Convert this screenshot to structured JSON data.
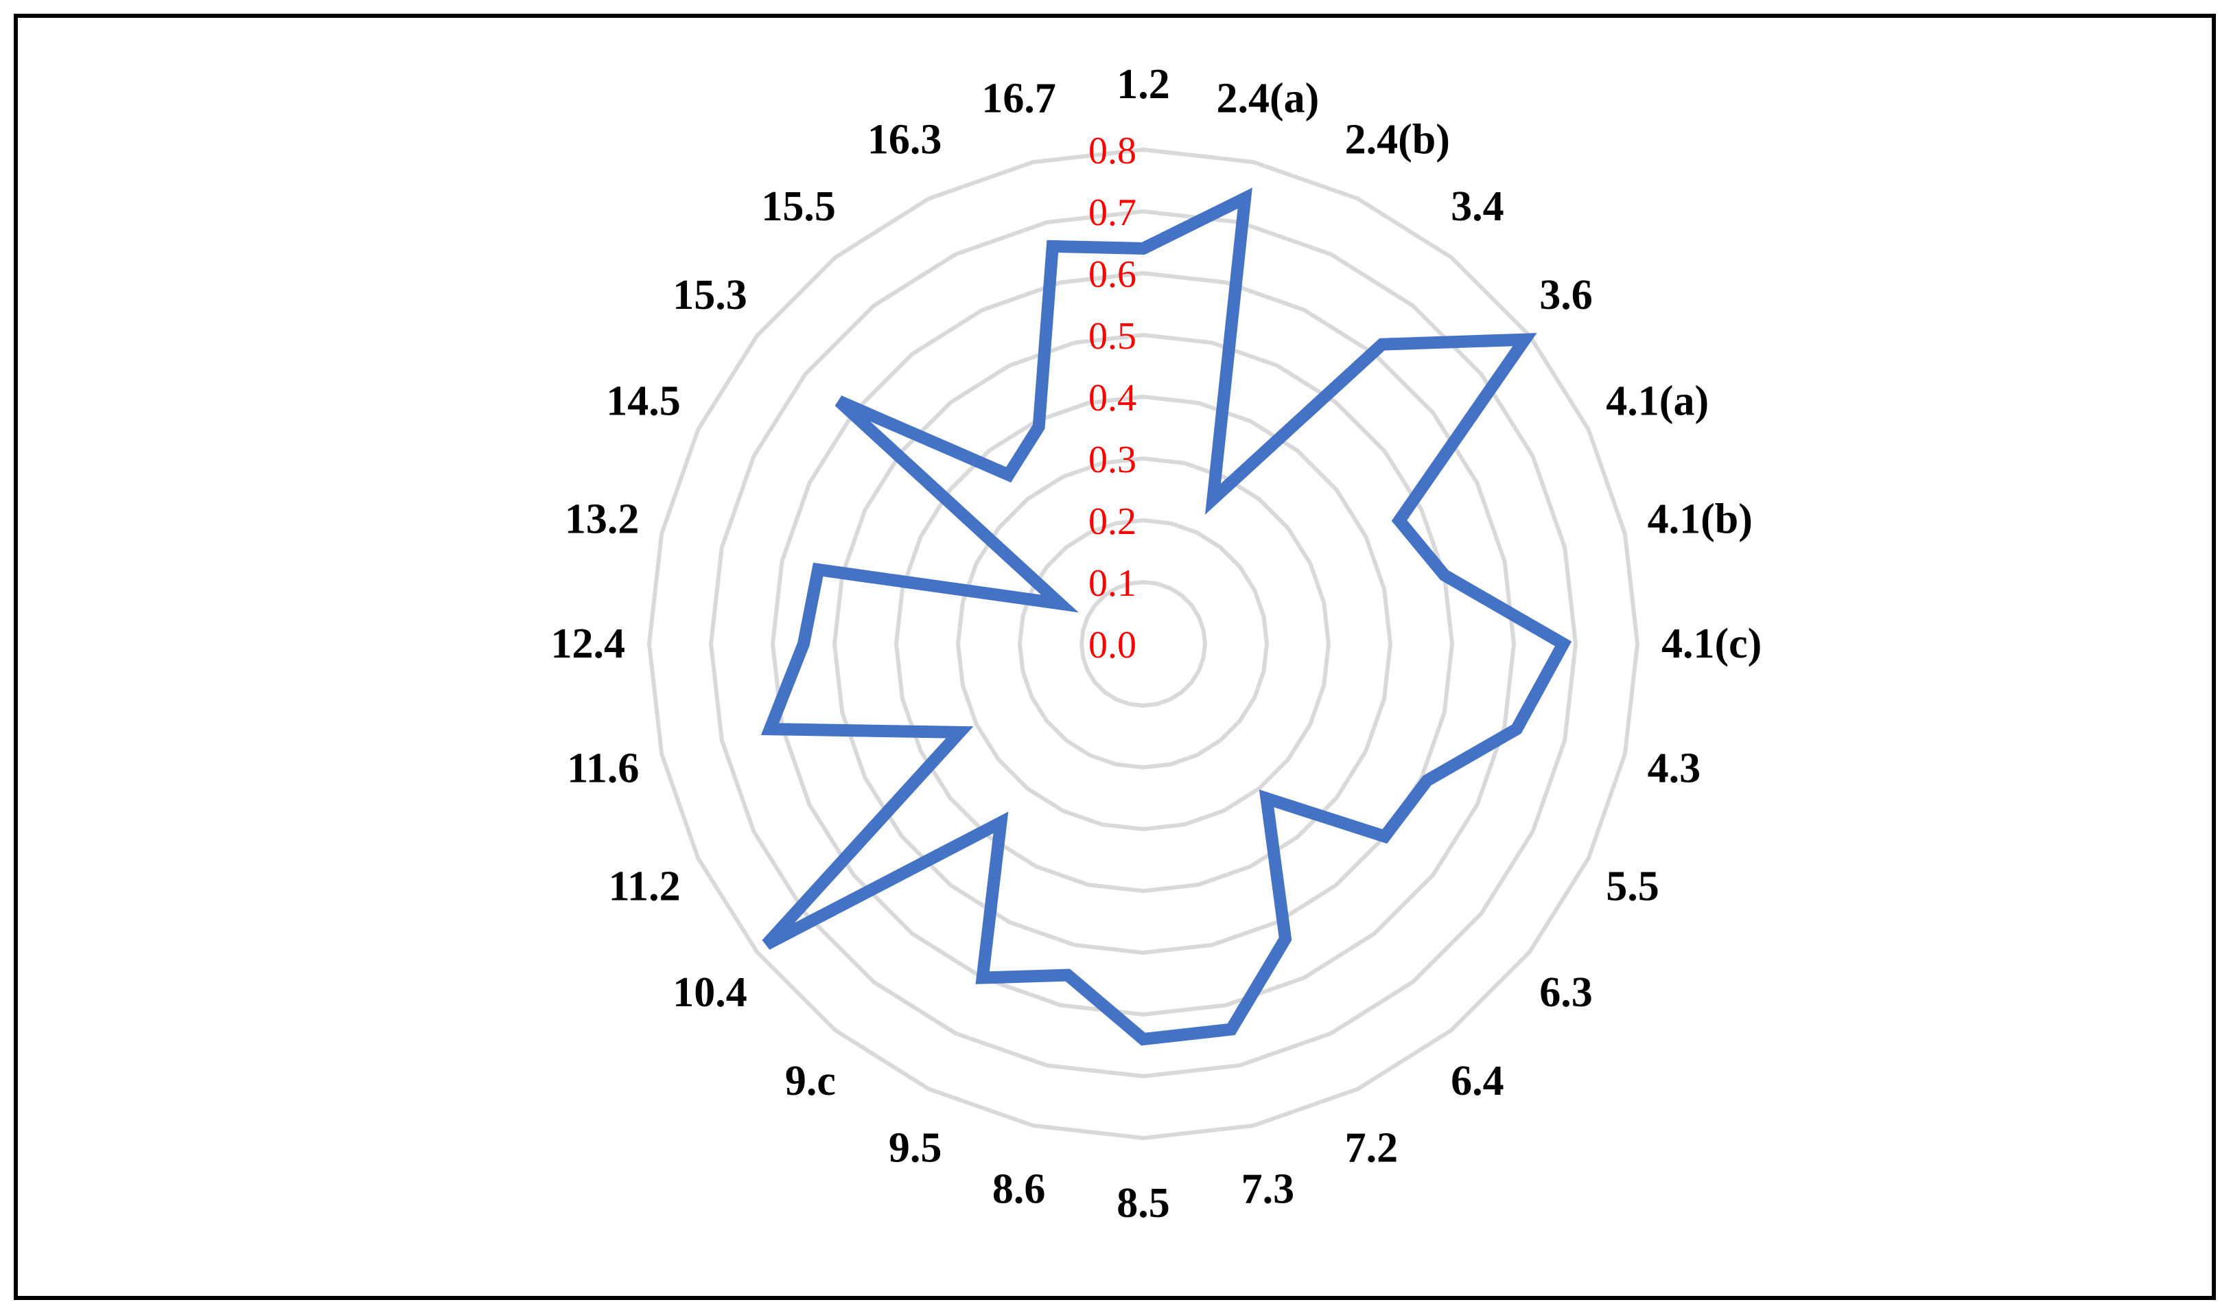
{
  "chart_data": {
    "type": "radar",
    "title": "",
    "categories": [
      "1.2",
      "2.4(a)",
      "2.4(b)",
      "3.4",
      "3.6",
      "4.1(a)",
      "4.1(b)",
      "4.1(c)",
      "4.3",
      "5.5",
      "6.3",
      "6.4",
      "7.2",
      "7.3",
      "8.5",
      "8.6",
      "9.5",
      "9.c",
      "10.4",
      "11.2",
      "11.6",
      "12.4",
      "13.2",
      "14.5",
      "15.3",
      "15.5",
      "16.3",
      "16.7"
    ],
    "values": [
      0.64,
      0.74,
      0.26,
      0.62,
      0.79,
      0.46,
      0.5,
      0.68,
      0.62,
      0.51,
      0.5,
      0.32,
      0.53,
      0.64,
      0.64,
      0.55,
      0.6,
      0.37,
      0.78,
      0.33,
      0.62,
      0.55,
      0.54,
      0.15,
      0.63,
      0.35,
      0.39,
      0.66
    ],
    "rlim": [
      0,
      0.8
    ],
    "ticks": [
      "0.0",
      "0.1",
      "0.2",
      "0.3",
      "0.4",
      "0.5",
      "0.6",
      "0.7",
      "0.8"
    ],
    "tick_values": [
      0,
      0.1,
      0.2,
      0.3,
      0.4,
      0.5,
      0.6,
      0.7,
      0.8
    ],
    "grid": true,
    "legend": "none",
    "colors": {
      "series": "#4472C4",
      "grid": "#D9D9D9",
      "ticks": "#FF0000",
      "labels": "#000000"
    }
  }
}
